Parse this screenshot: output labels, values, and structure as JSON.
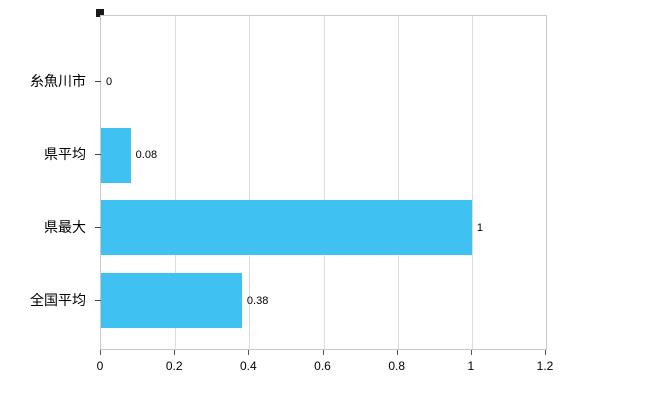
{
  "chart_data": {
    "type": "bar",
    "orientation": "horizontal",
    "title": "",
    "xlabel": "",
    "ylabel": "",
    "categories": [
      "糸魚川市",
      "県平均",
      "県最大",
      "全国平均"
    ],
    "values": [
      0,
      0.08,
      1,
      0.38
    ],
    "value_labels": [
      "0",
      "0.08",
      "1",
      "0.38"
    ],
    "xlim": [
      0,
      1.2
    ],
    "x_ticks": [
      0,
      0.2,
      0.4,
      0.6,
      0.8,
      1,
      1.2
    ],
    "x_tick_labels": [
      "0",
      "0.2",
      "0.4",
      "0.6",
      "0.8",
      "1",
      "1.2"
    ],
    "bar_color": "#3fc1f1",
    "grid": true,
    "legend_position": "none"
  }
}
